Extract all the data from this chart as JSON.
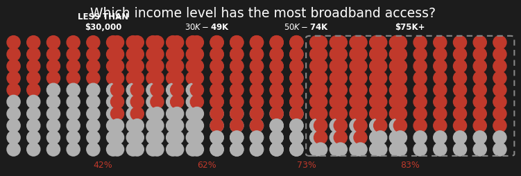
{
  "title": "Which income level has the most broadband access?",
  "background_color": "#1c1c1c",
  "categories": [
    "LESS THAN\n$30,000",
    "$30K-$49K",
    "$50K-$74K",
    "$75K+"
  ],
  "percentages": [
    42,
    62,
    73,
    83
  ],
  "pct_labels": [
    "42%",
    "62%",
    "73%",
    "83%"
  ],
  "red_color": "#c0392b",
  "white_color": "#b0b0b0",
  "text_color": "#ffffff",
  "pct_color": "#c0392b",
  "grid_cols": 10,
  "grid_rows": 10,
  "highlight_last": true,
  "dashed_border_color": "#888888",
  "title_fontsize": 13.5,
  "label_fontsize": 8.5,
  "pct_fontsize": 9
}
